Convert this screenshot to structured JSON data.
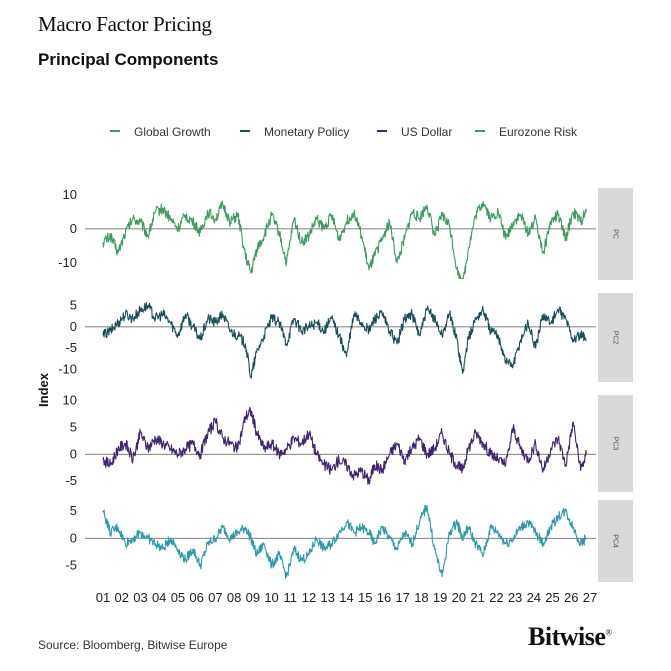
{
  "header": {
    "brand_title": "Macro Factor Pricing",
    "chart_title": "Principal Components"
  },
  "footer": {
    "source": "Source: Bloomberg, Bitwise Europe",
    "logo_text": "Bitwise",
    "logo_mark": "®"
  },
  "chart_data": {
    "type": "line",
    "title": "Principal Components",
    "ylabel": "Index",
    "xlabel": "",
    "x_tick_labels": [
      "01",
      "02",
      "03",
      "04",
      "05",
      "06",
      "07",
      "08",
      "09",
      "10",
      "11",
      "12",
      "13",
      "14",
      "15",
      "16",
      "17",
      "18",
      "19",
      "20",
      "21",
      "22",
      "23",
      "24",
      "25",
      "26",
      "27"
    ],
    "x_range": [
      2001.0,
      2027.0
    ],
    "legend_position": "top",
    "grid": false,
    "series": [
      {
        "name": "Global Growth",
        "panel_label": "PC",
        "color": "#3f9a5f",
        "ylim": [
          -15,
          12
        ],
        "yticks": [
          10,
          0,
          -10
        ],
        "x": [
          2001.0,
          2001.4,
          2001.8,
          2002.2,
          2002.6,
          2003.0,
          2003.4,
          2003.8,
          2004.2,
          2004.6,
          2005.0,
          2005.4,
          2005.8,
          2006.2,
          2006.6,
          2007.0,
          2007.4,
          2007.8,
          2008.2,
          2008.6,
          2008.9,
          2009.2,
          2009.6,
          2010.0,
          2010.4,
          2010.8,
          2011.2,
          2011.6,
          2012.0,
          2012.4,
          2012.8,
          2013.2,
          2013.6,
          2014.0,
          2014.4,
          2014.8,
          2015.2,
          2015.5,
          2015.9,
          2016.3,
          2016.7,
          2017.1,
          2017.5,
          2017.9,
          2018.3,
          2018.7,
          2019.1,
          2019.5,
          2019.9,
          2020.2,
          2020.5,
          2020.9,
          2021.3,
          2021.7,
          2022.1,
          2022.5,
          2022.9,
          2023.3,
          2023.7,
          2024.1,
          2024.5,
          2024.9,
          2025.3,
          2025.7,
          2026.1,
          2026.5,
          2026.8
        ],
        "values": [
          -4,
          -2,
          -7,
          -1,
          3,
          2,
          -2,
          5,
          6,
          3,
          0,
          4,
          2,
          -1,
          5,
          3,
          7,
          2,
          4,
          -8,
          -13,
          -6,
          -2,
          4,
          -1,
          -10,
          3,
          -4,
          -2,
          3,
          0,
          4,
          -3,
          2,
          5,
          -2,
          -12,
          -8,
          -3,
          2,
          -10,
          -3,
          5,
          3,
          7,
          -2,
          4,
          1,
          -12,
          -17,
          -6,
          4,
          8,
          3,
          5,
          -3,
          2,
          4,
          -1,
          3,
          -7,
          2,
          4,
          -3,
          5,
          2,
          5
        ]
      },
      {
        "name": "Monetary Policy",
        "panel_label": "PC2",
        "color": "#1b4d57",
        "ylim": [
          -13,
          8
        ],
        "yticks": [
          5,
          0,
          -5,
          -10
        ],
        "x": [
          2001.0,
          2001.4,
          2001.8,
          2002.2,
          2002.6,
          2003.0,
          2003.4,
          2003.8,
          2004.2,
          2004.6,
          2005.0,
          2005.4,
          2005.8,
          2006.2,
          2006.6,
          2007.0,
          2007.4,
          2007.8,
          2008.2,
          2008.6,
          2008.9,
          2009.2,
          2009.6,
          2010.0,
          2010.4,
          2010.8,
          2011.2,
          2011.6,
          2012.0,
          2012.4,
          2012.8,
          2013.2,
          2013.6,
          2014.0,
          2014.4,
          2014.8,
          2015.2,
          2015.5,
          2015.9,
          2016.3,
          2016.7,
          2017.1,
          2017.5,
          2017.9,
          2018.3,
          2018.7,
          2019.1,
          2019.5,
          2019.9,
          2020.2,
          2020.5,
          2020.9,
          2021.3,
          2021.7,
          2022.1,
          2022.5,
          2022.9,
          2023.3,
          2023.7,
          2024.1,
          2024.5,
          2024.9,
          2025.3,
          2025.7,
          2026.1,
          2026.5,
          2026.8
        ],
        "values": [
          -2,
          -1,
          1,
          3,
          2,
          4,
          5,
          2,
          3,
          1,
          -2,
          3,
          0,
          -3,
          2,
          1,
          3,
          -1,
          -2,
          -4,
          -12,
          -6,
          -2,
          2,
          1,
          -4,
          2,
          -1,
          0,
          1,
          -1,
          2,
          -2,
          -7,
          3,
          1,
          -1,
          2,
          3,
          -1,
          -4,
          2,
          3,
          -2,
          4,
          2,
          -2,
          3,
          -3,
          -11,
          -3,
          2,
          4,
          -1,
          -2,
          -8,
          -9,
          -3,
          1,
          -5,
          3,
          1,
          4,
          2,
          -3,
          -2,
          -3
        ]
      },
      {
        "name": "US Dollar",
        "panel_label": "PC3",
        "color": "#3f2470",
        "ylim": [
          -7,
          11
        ],
        "yticks": [
          10,
          5,
          0,
          -5
        ],
        "x": [
          2001.0,
          2001.4,
          2001.8,
          2002.2,
          2002.6,
          2003.0,
          2003.4,
          2003.8,
          2004.2,
          2004.6,
          2005.0,
          2005.4,
          2005.8,
          2006.2,
          2006.6,
          2007.0,
          2007.4,
          2007.8,
          2008.2,
          2008.6,
          2008.9,
          2009.2,
          2009.6,
          2010.0,
          2010.4,
          2010.8,
          2011.2,
          2011.6,
          2012.0,
          2012.4,
          2012.8,
          2013.2,
          2013.6,
          2014.0,
          2014.4,
          2014.8,
          2015.2,
          2015.5,
          2015.9,
          2016.3,
          2016.7,
          2017.1,
          2017.5,
          2017.9,
          2018.3,
          2018.7,
          2019.1,
          2019.5,
          2019.9,
          2020.2,
          2020.5,
          2020.9,
          2021.3,
          2021.7,
          2022.1,
          2022.5,
          2022.9,
          2023.3,
          2023.7,
          2024.1,
          2024.5,
          2024.9,
          2025.3,
          2025.7,
          2026.1,
          2026.5,
          2026.8
        ],
        "values": [
          -1,
          -2,
          1,
          2,
          -1,
          4,
          1,
          3,
          2,
          1,
          0,
          1,
          2,
          0,
          4,
          6,
          3,
          2,
          1,
          7,
          8,
          4,
          1,
          2,
          0,
          1,
          3,
          2,
          4,
          0,
          -2,
          -3,
          -1,
          -2,
          -4,
          -3,
          -5,
          -2,
          -3,
          0,
          2,
          -1,
          1,
          3,
          0,
          1,
          4,
          0,
          -2,
          -3,
          1,
          4,
          2,
          0,
          -1,
          -2,
          5,
          1,
          -1,
          2,
          -3,
          1,
          3,
          -2,
          6,
          -3,
          0
        ]
      },
      {
        "name": "Eurozone Risk",
        "panel_label": "PC4",
        "color": "#2b9aa5",
        "ylim": [
          -8,
          7
        ],
        "yticks": [
          5,
          0,
          -5
        ],
        "x": [
          2001.0,
          2001.4,
          2001.8,
          2002.2,
          2002.6,
          2003.0,
          2003.4,
          2003.8,
          2004.2,
          2004.6,
          2005.0,
          2005.4,
          2005.8,
          2006.2,
          2006.6,
          2007.0,
          2007.4,
          2007.8,
          2008.2,
          2008.6,
          2008.9,
          2009.2,
          2009.6,
          2010.0,
          2010.4,
          2010.8,
          2011.2,
          2011.6,
          2012.0,
          2012.4,
          2012.8,
          2013.2,
          2013.6,
          2014.0,
          2014.4,
          2014.8,
          2015.2,
          2015.5,
          2015.9,
          2016.3,
          2016.7,
          2017.1,
          2017.5,
          2017.9,
          2018.3,
          2018.7,
          2019.1,
          2019.5,
          2019.9,
          2020.2,
          2020.5,
          2020.9,
          2021.3,
          2021.7,
          2022.1,
          2022.5,
          2022.9,
          2023.3,
          2023.7,
          2024.1,
          2024.5,
          2024.9,
          2025.3,
          2025.7,
          2026.1,
          2026.5,
          2026.8
        ],
        "values": [
          5,
          1,
          2,
          -1,
          0,
          1,
          0,
          -1,
          -2,
          0,
          -2,
          -4,
          -2,
          -5,
          -1,
          0,
          2,
          0,
          1,
          2,
          0,
          -3,
          -1,
          -5,
          -3,
          -7,
          -2,
          -4,
          -3,
          0,
          -2,
          -1,
          1,
          3,
          1,
          2,
          1,
          -1,
          2,
          0,
          -2,
          1,
          -1,
          3,
          6,
          -2,
          -7,
          1,
          3,
          0,
          2,
          -1,
          -3,
          2,
          1,
          -1,
          0,
          2,
          3,
          1,
          -1,
          2,
          4,
          5,
          2,
          -1,
          0
        ]
      }
    ]
  }
}
